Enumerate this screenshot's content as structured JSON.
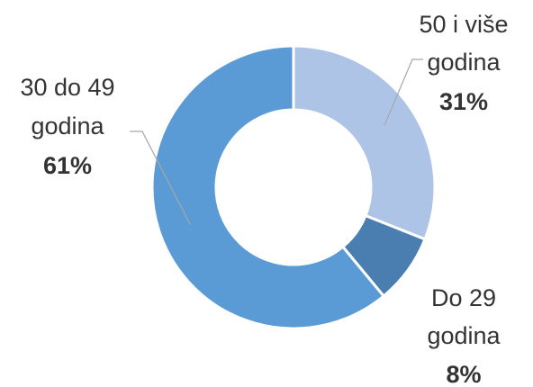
{
  "chart_data": {
    "type": "pie",
    "variant": "donut",
    "slices": [
      {
        "line1": "50 i više",
        "line2": "godina",
        "pct_label": "31%",
        "value": 31,
        "color": "#aec4e6"
      },
      {
        "line1": "Do 29",
        "line2": "godina",
        "pct_label": "8%",
        "value": 8,
        "color": "#4a7eb1"
      },
      {
        "line1": "30 do 49",
        "line2": "godina",
        "pct_label": "61%",
        "value": 61,
        "color": "#5b9bd5"
      }
    ],
    "start_angle_deg": 0,
    "direction": "clockwise",
    "label_text_color": "#333333",
    "leader_line_color": "#a6a6a6"
  }
}
